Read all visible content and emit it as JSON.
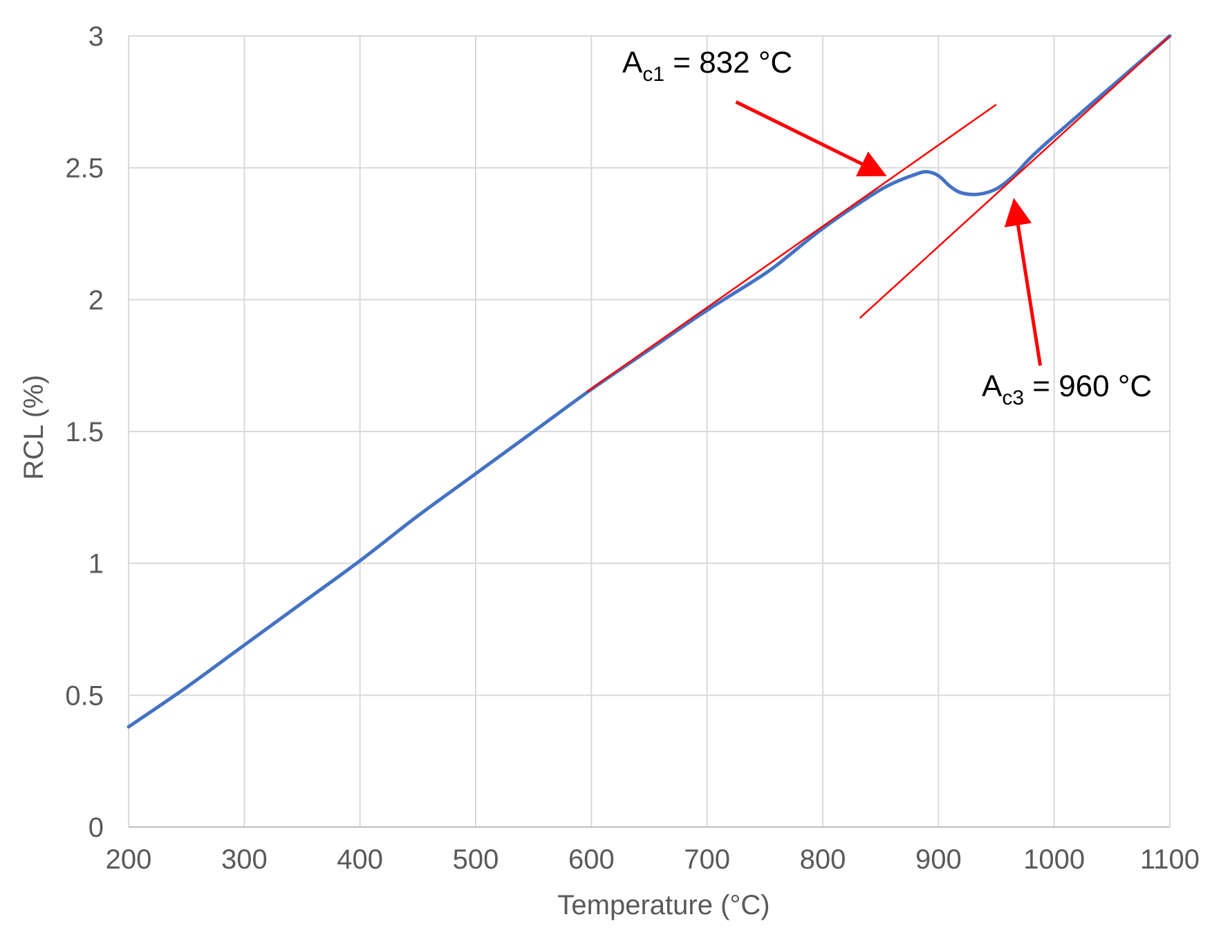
{
  "chart_data": {
    "type": "line",
    "title": "",
    "xlabel": "Temperature (°C)",
    "ylabel": "RCL (%)",
    "xlim": [
      200,
      1100
    ],
    "ylim": [
      0,
      3
    ],
    "x_ticks": [
      "200",
      "300",
      "400",
      "500",
      "600",
      "700",
      "800",
      "900",
      "1000",
      "1100"
    ],
    "y_ticks": [
      "0",
      "0.5",
      "1",
      "1.5",
      "2",
      "2.5",
      "3"
    ],
    "grid": true,
    "legend": "none",
    "series": [
      {
        "color": "#4472C4",
        "x": [
          200,
          250,
          300,
          350,
          400,
          450,
          500,
          550,
          600,
          650,
          700,
          740,
          760,
          800,
          840,
          860,
          880,
          890,
          900,
          910,
          920,
          935,
          950,
          965,
          980,
          1000,
          1050,
          1100
        ],
        "y": [
          0.38,
          0.53,
          0.69,
          0.85,
          1.01,
          1.18,
          1.34,
          1.5,
          1.66,
          1.81,
          1.96,
          2.07,
          2.13,
          2.27,
          2.39,
          2.44,
          2.475,
          2.485,
          2.47,
          2.43,
          2.405,
          2.4,
          2.42,
          2.47,
          2.54,
          2.62,
          2.81,
          3.0
        ]
      }
    ],
    "tangent_lines": [
      {
        "color": "#FF0000",
        "x": [
          596,
          950
        ],
        "y": [
          1.65,
          2.74
        ]
      },
      {
        "color": "#FF0000",
        "x": [
          832,
          1100
        ],
        "y": [
          1.93,
          3.0
        ]
      }
    ],
    "annotations": [
      {
        "label_main": "A",
        "label_sub": "c1",
        "label_rest": " = 832 °C",
        "arrow_color": "#FF0000",
        "arrow_from": [
          725,
          2.75
        ],
        "arrow_to": [
          850,
          2.48
        ]
      },
      {
        "label_main": "A",
        "label_sub": "c3",
        "label_rest": " = 960 °C",
        "arrow_color": "#FF0000",
        "arrow_from": [
          988,
          1.75
        ],
        "arrow_to": [
          966,
          2.36
        ]
      }
    ]
  }
}
